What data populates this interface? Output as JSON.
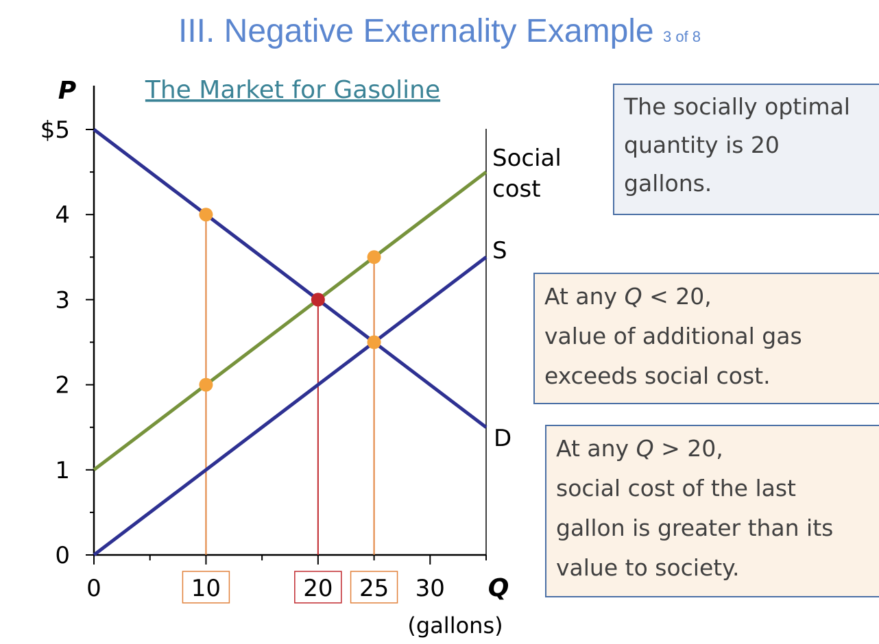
{
  "slide": {
    "title": "III. Negative Externality Example",
    "page_indicator": "3 of 8"
  },
  "chart_data": {
    "type": "line",
    "title": "The Market for Gasoline",
    "xlabel": "Q",
    "xlabel_unit": "(gallons)",
    "ylabel": "P",
    "xlim": [
      0,
      35
    ],
    "ylim": [
      0,
      5
    ],
    "x_ticks": [
      "0",
      "10",
      "20",
      "25",
      "30"
    ],
    "y_ticks": [
      "0",
      "1",
      "2",
      "3",
      "4",
      "$5"
    ],
    "series": [
      {
        "name": "Social cost",
        "color": "#77933c",
        "points": [
          [
            0,
            1
          ],
          [
            35,
            4.5
          ]
        ]
      },
      {
        "name": "S",
        "color": "#2e3192",
        "points": [
          [
            0,
            0
          ],
          [
            35,
            3.5
          ]
        ]
      },
      {
        "name": "D",
        "color": "#2e3192",
        "points": [
          [
            0,
            5
          ],
          [
            35,
            1.5
          ]
        ]
      }
    ],
    "markers": [
      {
        "x": 10,
        "y": 4,
        "color": "#f4a23c"
      },
      {
        "x": 10,
        "y": 2,
        "color": "#f4a23c"
      },
      {
        "x": 25,
        "y": 3.5,
        "color": "#f4a23c"
      },
      {
        "x": 25,
        "y": 2.5,
        "color": "#f4a23c"
      },
      {
        "x": 20,
        "y": 3,
        "color": "#c0282d"
      }
    ],
    "droplines": [
      {
        "x": 10,
        "y": 4,
        "color": "#e1813a"
      },
      {
        "x": 20,
        "y": 3,
        "color": "#c0282d"
      },
      {
        "x": 25,
        "y": 3.5,
        "color": "#e1813a"
      }
    ],
    "boxed_ticks": [
      {
        "x": 10,
        "label": "10",
        "color": "#e1813a"
      },
      {
        "x": 20,
        "label": "20",
        "color": "#c0282d"
      },
      {
        "x": 25,
        "label": "25",
        "color": "#e1813a"
      }
    ]
  },
  "callouts": {
    "optimal": {
      "lines": [
        "The socially optimal",
        "quantity is 20",
        "gallons."
      ]
    },
    "below": {
      "l1a": "At any ",
      "l1q": "Q",
      "l1b": " < 20,",
      "l2": "value of additional gas",
      "l3": "exceeds social cost."
    },
    "above": {
      "l1a": "At any ",
      "l1q": "Q",
      "l1b": " > 20,",
      "l2": "social cost of the last",
      "l3": "gallon is greater than its",
      "l4": "value to society."
    }
  }
}
